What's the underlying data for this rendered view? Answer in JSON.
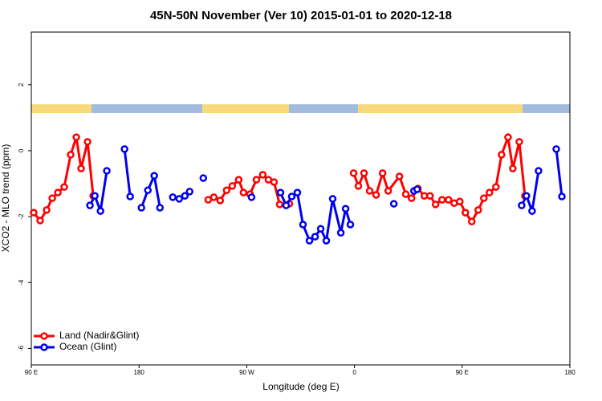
{
  "chart_data": {
    "type": "line",
    "title": "45N-50N November (Ver 10)   2015-01-01 to 2020-12-18",
    "x_label": "Longitude (deg E)",
    "y_label": "XCO2 - MLO trend (ppm)",
    "xlim": [
      90,
      540
    ],
    "ylim": [
      -6.5,
      3.6
    ],
    "xticks": [
      {
        "value": 90,
        "label": "90 E"
      },
      {
        "value": 180,
        "label": "180"
      },
      {
        "value": 270,
        "label": "90 W"
      },
      {
        "value": 360,
        "label": "0"
      },
      {
        "value": 450,
        "label": "90 E"
      },
      {
        "value": 540,
        "label": "180"
      }
    ],
    "yticks": [
      2,
      0,
      -2,
      -4,
      -6
    ],
    "legend": "bottom-left",
    "series": [
      {
        "name": "Land (Nadir&Glint)",
        "color": "#ff0000",
        "x": [
          92,
          97.4,
          102.8,
          107.5,
          112.2,
          117.5,
          122.9,
          127.6,
          131.6,
          137,
          141.7,
          null,
          237.8,
          242.5,
          247.8,
          253.2,
          257.9,
          263.3,
          267.3,
          272.7,
          278.1,
          283.4,
          288.1,
          292.8,
          297.5,
          305.6,
          null,
          359.3,
          363.3,
          368,
          372.7,
          378.1,
          383.5,
          388.2,
          397.6,
          402.9,
          407.7,
          413,
          418.4,
          423.1,
          427.8,
          433.2,
          438.6,
          443.3,
          448,
          452.7,
          458,
          463.4,
          468.1,
          472.8,
          478.2,
          482.9,
          488.3,
          492.3,
          497.7,
          502.4
        ],
        "values": [
          -1.88,
          -2.12,
          -1.8,
          -1.44,
          -1.27,
          -1.1,
          -0.12,
          0.41,
          -0.54,
          0.27,
          -1.37,
          null,
          -1.49,
          -1.41,
          -1.51,
          -1.2,
          -1.07,
          -0.88,
          -1.27,
          -1.32,
          -0.88,
          -0.73,
          -0.88,
          -0.95,
          -1.63,
          -1.61,
          null,
          -0.68,
          -1.07,
          -0.68,
          -1.22,
          -1.34,
          -0.68,
          -1.22,
          -0.78,
          -1.32,
          -1.44,
          -1.15,
          -1.37,
          -1.37,
          -1.63,
          -1.49,
          -1.49,
          -1.59,
          -1.54,
          -1.88,
          -2.15,
          -1.8,
          -1.44,
          -1.27,
          -1.1,
          -0.12,
          0.41,
          -0.54,
          0.27,
          -1.37
        ]
      },
      {
        "name": "Ocean (Glint)",
        "color": "#0000ee",
        "x": [
          139,
          143.1,
          147.8,
          153.1,
          null,
          167.9,
          172.6,
          null,
          182,
          187.4,
          192.7,
          197.5,
          null,
          208.2,
          213.6,
          218.3,
          222.3,
          null,
          233.7,
          null,
          274,
          null,
          298.2,
          302.9,
          307.6,
          312.3,
          317,
          322.4,
          327.1,
          331.8,
          336.5,
          341.8,
          348.6,
          352.6,
          356.6,
          null,
          392.9,
          null,
          409.7,
          412.4,
          null,
          499.7,
          503.7,
          508.4,
          513.8,
          null,
          528.6,
          533.3
        ],
        "values": [
          -1.66,
          -1.37,
          -1.83,
          -0.61,
          null,
          0.05,
          -1.39,
          null,
          -1.73,
          -1.2,
          -0.76,
          -1.73,
          null,
          -1.41,
          -1.46,
          -1.37,
          -1.24,
          null,
          -0.83,
          null,
          -1.41,
          null,
          -1.27,
          -1.66,
          -1.39,
          -1.27,
          -2.24,
          -2.73,
          -2.61,
          -2.37,
          -2.73,
          -1.46,
          -2.49,
          -1.76,
          -2.24,
          null,
          -1.61,
          null,
          -1.22,
          -1.17,
          null,
          -1.66,
          -1.37,
          -1.83,
          -0.61,
          null,
          0.05,
          -1.39
        ]
      }
    ]
  }
}
